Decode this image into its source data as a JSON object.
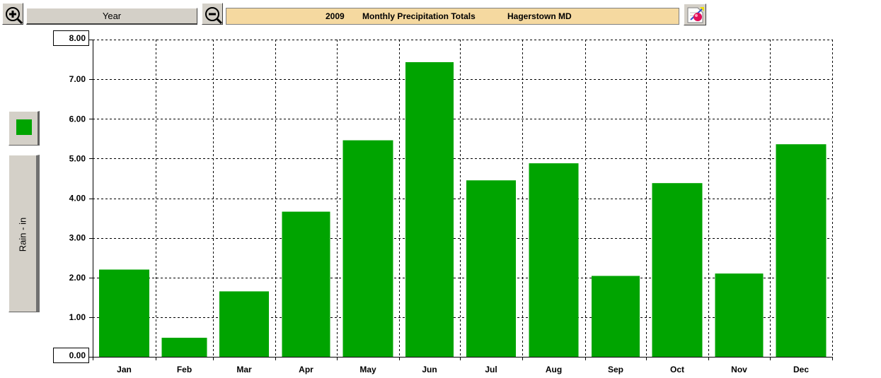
{
  "toolbar": {
    "zoom_in_icon": "zoom-in-icon",
    "zoom_out_icon": "zoom-out-icon",
    "period_label": "Year",
    "print_icon": "print-icon"
  },
  "title": {
    "year": "2009",
    "text": "Monthly Precipitation Totals",
    "location": "Hagerstown MD"
  },
  "side": {
    "legend_color": "#00a400",
    "y_axis_label": "Rain - in"
  },
  "axis": {
    "y_max_label": "8.00",
    "y_min_label": "0.00"
  },
  "chart_data": {
    "type": "bar",
    "title": "",
    "categories": [
      "Jan",
      "Feb",
      "Mar",
      "Apr",
      "May",
      "Jun",
      "Jul",
      "Aug",
      "Sep",
      "Oct",
      "Nov",
      "Dec"
    ],
    "values": [
      2.2,
      0.48,
      1.65,
      3.66,
      5.46,
      7.43,
      4.45,
      4.88,
      2.04,
      4.38,
      2.1,
      5.36
    ],
    "ylabel": "Rain - in",
    "xlabel": "",
    "ylim": [
      0,
      8
    ],
    "y_ticks": [
      "1.00",
      "2.00",
      "3.00",
      "4.00",
      "5.00",
      "6.00",
      "7.00"
    ],
    "grid": true,
    "bar_color": "#00a400"
  }
}
